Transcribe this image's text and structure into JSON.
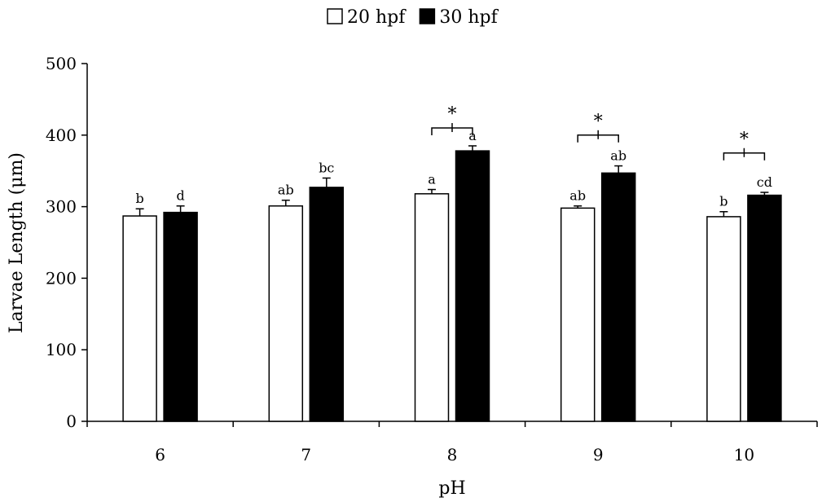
{
  "chart_data": {
    "type": "bar",
    "categories": [
      "6",
      "7",
      "8",
      "9",
      "10"
    ],
    "series": [
      {
        "name": "20 hpf",
        "values": [
          287,
          301,
          318,
          298,
          286
        ],
        "errors": [
          10,
          8,
          6,
          3,
          7
        ],
        "letters": [
          "b",
          "ab",
          "a",
          "ab",
          "b"
        ],
        "color": "#ffffff"
      },
      {
        "name": "30 hpf",
        "values": [
          292,
          327,
          378,
          347,
          316
        ],
        "errors": [
          9,
          13,
          7,
          10,
          4
        ],
        "letters": [
          "d",
          "bc",
          "a",
          "ab",
          "cd"
        ],
        "color": "#000000"
      }
    ],
    "significance": [
      {
        "category": "8",
        "label": "*",
        "y": 410
      },
      {
        "category": "9",
        "label": "*",
        "y": 400
      },
      {
        "category": "10",
        "label": "*",
        "y": 375
      }
    ],
    "xlabel": "pH",
    "ylabel": "Larvae Length (μm)",
    "ylim": [
      0,
      500
    ],
    "yticks": [
      0,
      100,
      200,
      300,
      400,
      500
    ],
    "legend_position": "top-center",
    "grid": false
  }
}
